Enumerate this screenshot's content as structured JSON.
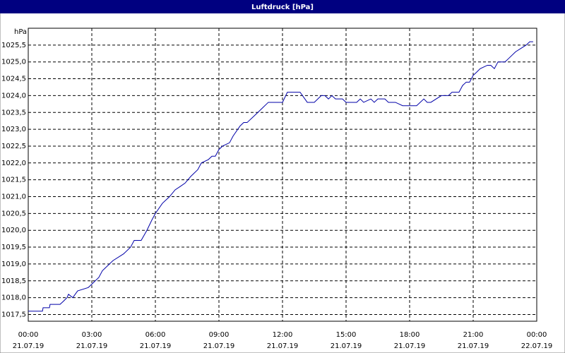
{
  "chart_data": {
    "type": "line",
    "title": "Luftdruck [hPa]",
    "y_label": "hPa",
    "grid": true,
    "color": "#0000a8",
    "xlim": [
      0,
      24
    ],
    "xticks": [
      {
        "value": 0,
        "label": "00:00"
      },
      {
        "value": 3,
        "label": "03:00"
      },
      {
        "value": 6,
        "label": "06:00"
      },
      {
        "value": 9,
        "label": "09:00"
      },
      {
        "value": 12,
        "label": "12:00"
      },
      {
        "value": 15,
        "label": "15:00"
      },
      {
        "value": 18,
        "label": "18:00"
      },
      {
        "value": 21,
        "label": "21:00"
      },
      {
        "value": 24,
        "label": "00:00"
      }
    ],
    "xtick_dates": [
      "21.07.19",
      "21.07.19",
      "21.07.19",
      "21.07.19",
      "21.07.19",
      "21.07.19",
      "21.07.19",
      "21.07.19",
      "22.07.19"
    ],
    "ylim": [
      1017.3,
      1026.0
    ],
    "yticks": [
      {
        "value": 1017.5,
        "label": "1017,5"
      },
      {
        "value": 1018,
        "label": "1018,0"
      },
      {
        "value": 1018.5,
        "label": "1018,5"
      },
      {
        "value": 1019,
        "label": "1019,0"
      },
      {
        "value": 1019.5,
        "label": "1019,5"
      },
      {
        "value": 1020,
        "label": "1020,0"
      },
      {
        "value": 1020.5,
        "label": "1020,5"
      },
      {
        "value": 1021,
        "label": "1021,0"
      },
      {
        "value": 1021.5,
        "label": "1021,5"
      },
      {
        "value": 1022,
        "label": "1022,0"
      },
      {
        "value": 1022.5,
        "label": "1022,5"
      },
      {
        "value": 1023,
        "label": "1023,0"
      },
      {
        "value": 1023.5,
        "label": "1023,5"
      },
      {
        "value": 1024,
        "label": "1024,0"
      },
      {
        "value": 1024.5,
        "label": "1024,5"
      },
      {
        "value": 1025,
        "label": "1025,0"
      },
      {
        "value": 1025.5,
        "label": "1025,5"
      }
    ],
    "x": [
      0,
      0.67,
      0.7,
      1.0,
      1.03,
      1.5,
      1.67,
      1.83,
      1.9,
      2.1,
      2.33,
      2.83,
      3.0,
      3.33,
      3.5,
      4.0,
      4.5,
      4.83,
      5.0,
      5.33,
      5.6,
      5.83,
      6.0,
      6.33,
      6.5,
      6.67,
      6.93,
      7.17,
      7.4,
      7.67,
      8.0,
      8.17,
      8.5,
      8.67,
      8.83,
      9.0,
      9.17,
      9.5,
      9.67,
      10.0,
      10.17,
      10.33,
      10.67,
      11.0,
      11.33,
      12.0,
      12.23,
      12.83,
      13.17,
      13.5,
      13.83,
      14.0,
      14.17,
      14.33,
      14.5,
      14.83,
      15.0,
      15.5,
      15.67,
      15.83,
      16.17,
      16.33,
      16.5,
      16.83,
      17.0,
      17.33,
      17.67,
      18.33,
      18.67,
      18.83,
      19.0,
      19.5,
      19.83,
      20.0,
      20.33,
      20.5,
      20.67,
      20.83,
      21.0,
      21.17,
      21.33,
      21.67,
      21.83,
      22.0,
      22.17,
      22.5,
      22.67,
      23.0,
      23.5,
      23.67,
      23.83
    ],
    "values": [
      1017.6,
      1017.6,
      1017.7,
      1017.7,
      1017.8,
      1017.8,
      1017.9,
      1018.0,
      1018.1,
      1018.0,
      1018.2,
      1018.3,
      1018.4,
      1018.6,
      1018.8,
      1019.1,
      1019.3,
      1019.5,
      1019.7,
      1019.7,
      1020.0,
      1020.3,
      1020.5,
      1020.8,
      1020.9,
      1021.0,
      1021.2,
      1021.3,
      1021.4,
      1021.6,
      1021.8,
      1022.0,
      1022.1,
      1022.2,
      1022.2,
      1022.4,
      1022.5,
      1022.6,
      1022.8,
      1023.1,
      1023.2,
      1023.2,
      1023.4,
      1023.6,
      1023.8,
      1023.8,
      1024.1,
      1024.1,
      1023.8,
      1023.8,
      1024.0,
      1024.0,
      1023.9,
      1024.0,
      1023.9,
      1023.9,
      1023.8,
      1023.8,
      1023.9,
      1023.8,
      1023.9,
      1023.8,
      1023.9,
      1023.9,
      1023.8,
      1023.8,
      1023.7,
      1023.7,
      1023.9,
      1023.8,
      1023.8,
      1024.0,
      1024.0,
      1024.1,
      1024.1,
      1024.3,
      1024.4,
      1024.4,
      1024.6,
      1024.7,
      1024.8,
      1024.9,
      1024.9,
      1024.8,
      1025.0,
      1025.0,
      1025.1,
      1025.3,
      1025.5,
      1025.6,
      1025.6
    ]
  }
}
